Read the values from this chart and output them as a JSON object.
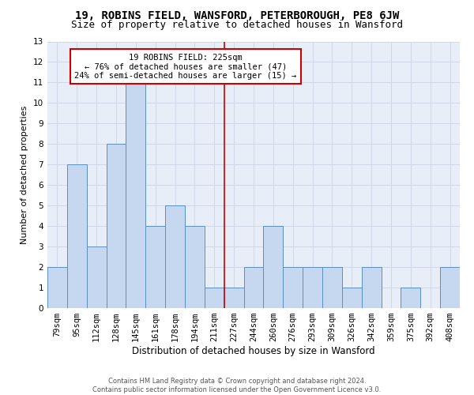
{
  "title1": "19, ROBINS FIELD, WANSFORD, PETERBOROUGH, PE8 6JW",
  "title2": "Size of property relative to detached houses in Wansford",
  "xlabel": "Distribution of detached houses by size in Wansford",
  "ylabel": "Number of detached properties",
  "categories": [
    "79sqm",
    "95sqm",
    "112sqm",
    "128sqm",
    "145sqm",
    "161sqm",
    "178sqm",
    "194sqm",
    "211sqm",
    "227sqm",
    "244sqm",
    "260sqm",
    "276sqm",
    "293sqm",
    "309sqm",
    "326sqm",
    "342sqm",
    "359sqm",
    "375sqm",
    "392sqm",
    "408sqm"
  ],
  "values": [
    2,
    7,
    3,
    8,
    11,
    4,
    5,
    4,
    1,
    1,
    2,
    4,
    2,
    2,
    2,
    1,
    2,
    0,
    1,
    0,
    2
  ],
  "bar_color": "#c5d8f0",
  "bar_edge_color": "#5a8fc0",
  "vline_color": "#cc0000",
  "annotation_text": "19 ROBINS FIELD: 225sqm\n← 76% of detached houses are smaller (47)\n24% of semi-detached houses are larger (15) →",
  "annotation_box_color": "#ffffff",
  "annotation_box_edge": "#cc0000",
  "ylim": [
    0,
    13
  ],
  "yticks": [
    0,
    1,
    2,
    3,
    4,
    5,
    6,
    7,
    8,
    9,
    10,
    11,
    12,
    13
  ],
  "grid_color": "#d0d8e8",
  "bg_color": "#e8eef8",
  "footer": "Contains HM Land Registry data © Crown copyright and database right 2024.\nContains public sector information licensed under the Open Government Licence v3.0.",
  "title1_fontsize": 10,
  "title2_fontsize": 9,
  "xlabel_fontsize": 8.5,
  "ylabel_fontsize": 8,
  "tick_fontsize": 7.5,
  "annot_fontsize": 7.5,
  "footer_fontsize": 6
}
